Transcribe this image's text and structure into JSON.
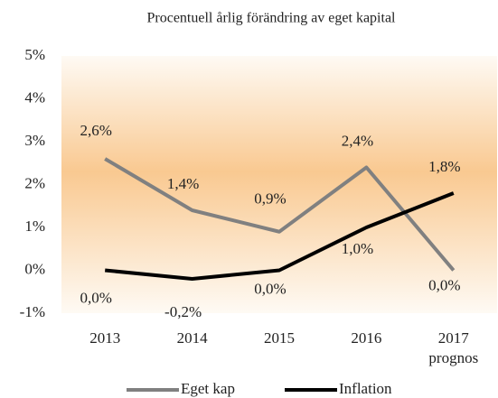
{
  "chart_data": {
    "type": "line",
    "title": "Procentuell årlig förändring av eget kapital",
    "categories": [
      "2013",
      "2014",
      "2015",
      "2016",
      "2017\nprognos"
    ],
    "series": [
      {
        "name": "Eget kap",
        "color": "#808080",
        "values": [
          2.6,
          1.4,
          0.9,
          2.4,
          0.0
        ],
        "value_labels": [
          "2,6%",
          "1,4%",
          "0,9%",
          "2,4%",
          "0,0%"
        ]
      },
      {
        "name": "Inflation",
        "color": "#000000",
        "values": [
          0.0,
          -0.2,
          0.0,
          1.0,
          1.8
        ],
        "value_labels": [
          "0,0%",
          "-0,2%",
          "0,0%",
          "1,0%",
          "1,8%"
        ]
      }
    ],
    "ylim": [
      -1,
      5
    ],
    "yticks": [
      {
        "value": -1,
        "label": "-1%"
      },
      {
        "value": 0,
        "label": "0%"
      },
      {
        "value": 1,
        "label": "1%"
      },
      {
        "value": 2,
        "label": "2%"
      },
      {
        "value": 3,
        "label": "3%"
      },
      {
        "value": 4,
        "label": "4%"
      },
      {
        "value": 5,
        "label": "5%"
      }
    ],
    "legend": "bottom"
  }
}
